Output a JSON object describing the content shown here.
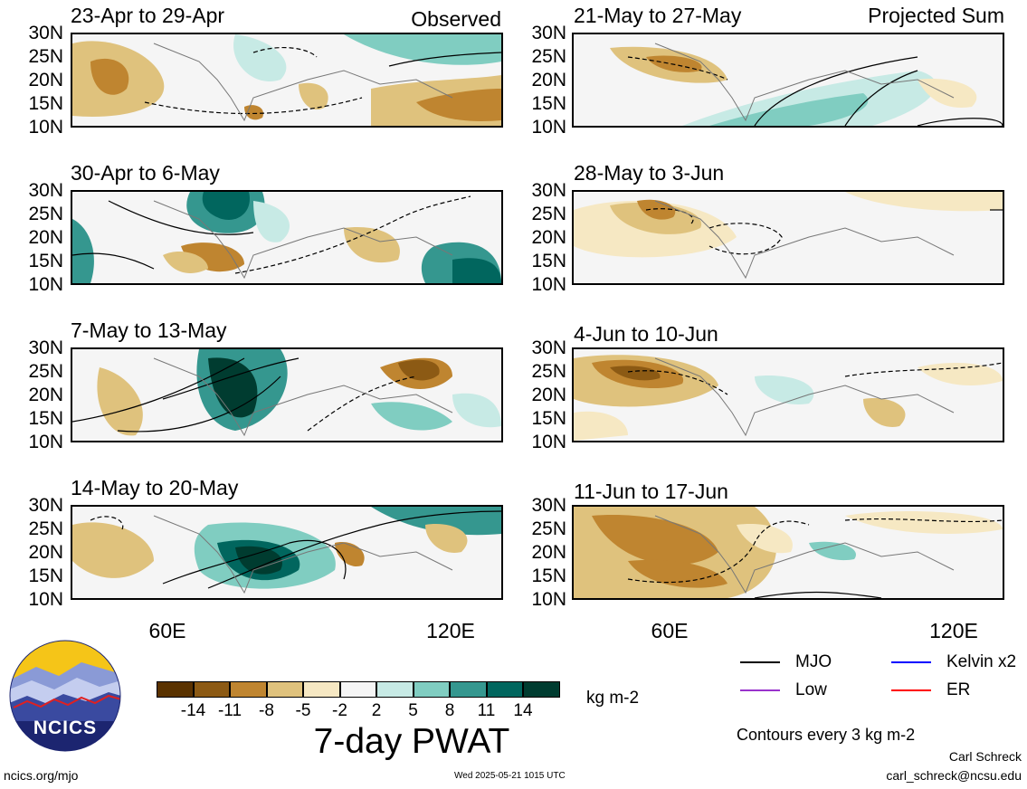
{
  "panels_left": {
    "tag": "Observed",
    "titles": [
      "23-Apr to 29-Apr",
      "30-Apr to 6-May",
      "7-May to 13-May",
      "14-May to 20-May"
    ]
  },
  "panels_right": {
    "tag": "Projected Sum",
    "titles": [
      "21-May to 27-May",
      "28-May to 3-Jun",
      "4-Jun to 10-Jun",
      "11-Jun to 17-Jun"
    ]
  },
  "lat_labels": [
    "30N",
    "25N",
    "20N",
    "15N",
    "10N"
  ],
  "lon_labels": [
    "60E",
    "120E"
  ],
  "colorbar": {
    "title": "7-day PWAT",
    "units": "kg m-2",
    "labels": [
      "-14",
      "-11",
      "-8",
      "-5",
      "-2",
      "2",
      "5",
      "8",
      "11",
      "14"
    ],
    "colors": [
      "#5a3200",
      "#8c5a14",
      "#bf8530",
      "#dfc27d",
      "#f6e8c3",
      "#f5f5f5",
      "#c7eae5",
      "#80cdc1",
      "#35978f",
      "#01665e",
      "#003c30"
    ]
  },
  "legend": {
    "items": [
      {
        "label": "MJO",
        "color": "#000000"
      },
      {
        "label": "Kelvin x2",
        "color": "#0000ff"
      },
      {
        "label": "Low",
        "color": "#9933cc"
      },
      {
        "label": "ER",
        "color": "#ff0000"
      }
    ],
    "contour_note": "Contours every 3 kg m-2"
  },
  "logo": {
    "text": "NCICS"
  },
  "footer": {
    "url": "ncics.org/mjo",
    "timestamp": "Wed 2025-05-21 1015 UTC",
    "author": "Carl Schreck",
    "email": "carl_schreck@ncsu.edu"
  }
}
